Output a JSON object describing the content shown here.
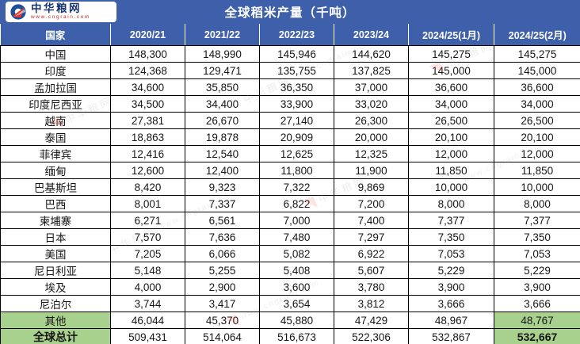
{
  "brand": {
    "name": "中华粮网",
    "site": "www.cngrain.com"
  },
  "header": {
    "title": "全球稻米产量（千吨）"
  },
  "watermark": {
    "text": "中华粮网",
    "site": "www.cngrain.com",
    "mark": "◥"
  },
  "colors": {
    "band_blue": "#3e5fa9",
    "highlight_green": "#a9d18e",
    "border_black": "#000000",
    "brand_navy": "#17356e",
    "brand_red": "#d6231f"
  },
  "table": {
    "columns": [
      "国家",
      "2020/21",
      "2021/22",
      "2022/23",
      "2023/24",
      "2024/25(1月)",
      "2024/25(2月)"
    ],
    "rows": [
      {
        "country": "中国",
        "values": [
          "148,300",
          "148,990",
          "145,946",
          "144,620",
          "145,275",
          "145,275"
        ]
      },
      {
        "country": "印度",
        "values": [
          "124,368",
          "129,471",
          "135,755",
          "137,825",
          "145,000",
          "145,000"
        ]
      },
      {
        "country": "孟加拉国",
        "values": [
          "34,600",
          "35,850",
          "36,350",
          "37,000",
          "36,600",
          "36,600"
        ]
      },
      {
        "country": "印度尼西亚",
        "values": [
          "34,500",
          "34,400",
          "33,900",
          "33,020",
          "34,000",
          "34,000"
        ]
      },
      {
        "country": "越南",
        "values": [
          "27,381",
          "26,670",
          "27,140",
          "26,300",
          "26,500",
          "26,500"
        ]
      },
      {
        "country": "泰国",
        "values": [
          "18,863",
          "19,878",
          "20,909",
          "20,000",
          "20,100",
          "20,100"
        ]
      },
      {
        "country": "菲律宾",
        "values": [
          "12,416",
          "12,540",
          "12,625",
          "12,325",
          "12,000",
          "12,000"
        ]
      },
      {
        "country": "缅甸",
        "values": [
          "12,600",
          "12,400",
          "11,800",
          "11,900",
          "11,850",
          "11,850"
        ]
      },
      {
        "country": "巴基斯坦",
        "values": [
          "8,420",
          "9,323",
          "7,322",
          "9,869",
          "10,000",
          "10,000"
        ]
      },
      {
        "country": "巴西",
        "values": [
          "8,001",
          "7,337",
          "6,822",
          "7,200",
          "8,000",
          "8,000"
        ]
      },
      {
        "country": "柬埔寨",
        "values": [
          "6,271",
          "6,561",
          "7,000",
          "7,400",
          "7,377",
          "7,377"
        ]
      },
      {
        "country": "日本",
        "values": [
          "7,570",
          "7,636",
          "7,480",
          "7,297",
          "7,350",
          "7,350"
        ]
      },
      {
        "country": "美国",
        "values": [
          "7,205",
          "6,066",
          "5,082",
          "6,922",
          "7,053",
          "7,053"
        ]
      },
      {
        "country": "尼日利亚",
        "values": [
          "5,148",
          "5,255",
          "5,408",
          "5,607",
          "5,229",
          "5,229"
        ]
      },
      {
        "country": "埃及",
        "values": [
          "4,000",
          "2,900",
          "3,600",
          "3,780",
          "3,900",
          "3,900"
        ]
      },
      {
        "country": "尼泊尔",
        "values": [
          "3,744",
          "3,417",
          "3,654",
          "3,812",
          "3,666",
          "3,666"
        ]
      },
      {
        "country": "其他",
        "values": [
          "46,044",
          "45,370",
          "45,880",
          "47,429",
          "48,967",
          "48,767"
        ],
        "highlight": true
      },
      {
        "country": "全球总计",
        "values": [
          "509,431",
          "514,064",
          "516,673",
          "522,306",
          "532,867",
          "532,667"
        ],
        "highlight": true,
        "bold": true
      }
    ]
  }
}
